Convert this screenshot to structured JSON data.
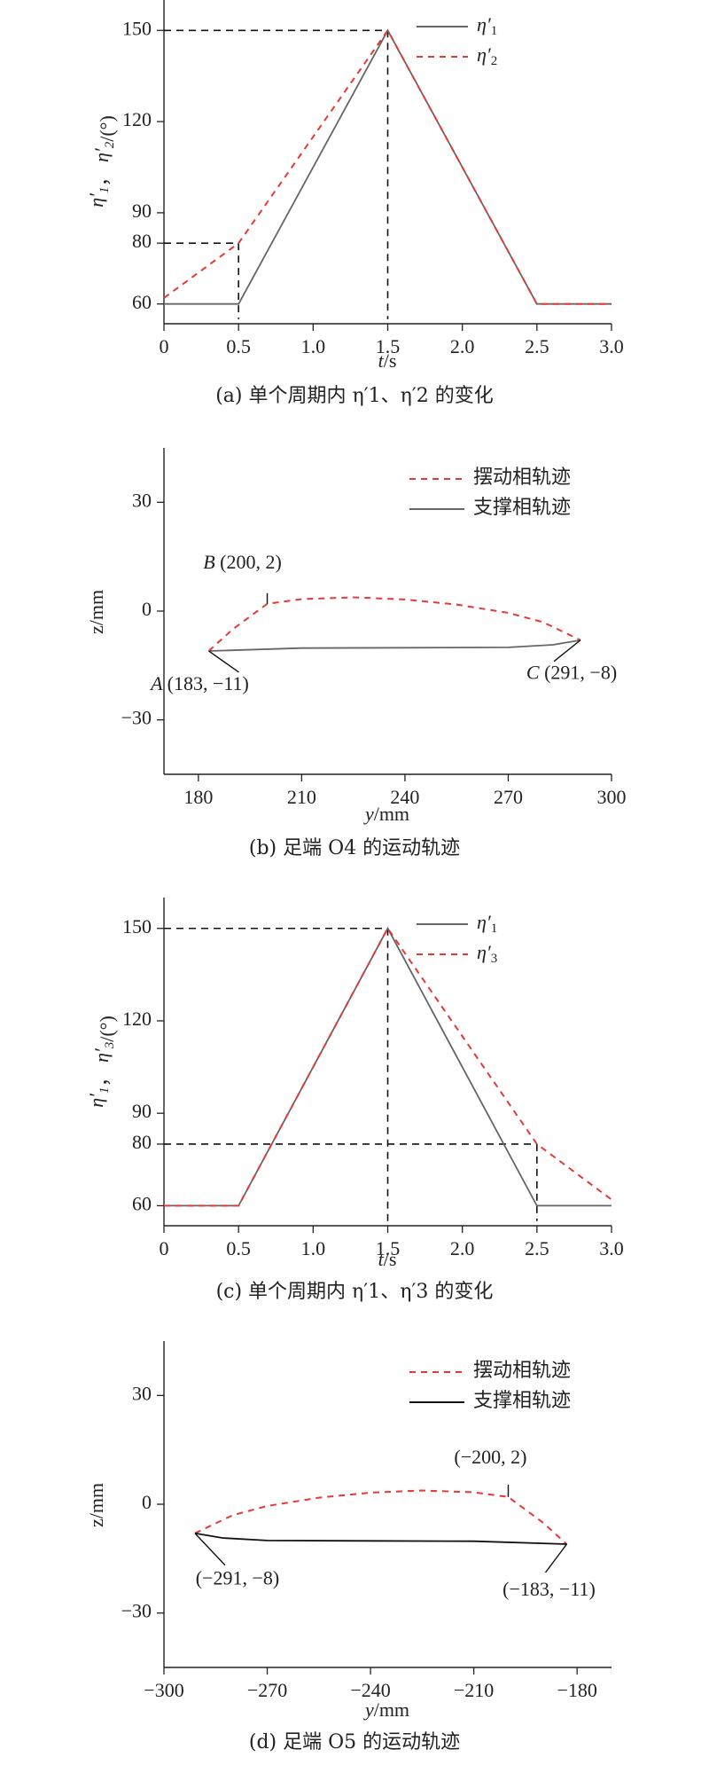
{
  "chart_data": [
    {
      "type": "line",
      "panel": "a",
      "caption": "(a) 单个周期内 η′1、η′2 的变化",
      "xlabel": "t/s",
      "ylabel": "η′1， η′2/(°)",
      "xlim": [
        0,
        3.0
      ],
      "ylim": [
        55,
        160
      ],
      "x_ticks": [
        "0",
        "0.5",
        "1.0",
        "1.5",
        "2.0",
        "2.5",
        "3.0"
      ],
      "y_ticks": [
        "60",
        "80",
        "90",
        "120",
        "150"
      ],
      "legend_position": "top-right",
      "series": [
        {
          "name": "η′1",
          "style": "solid",
          "color": "#666666",
          "points": [
            [
              0,
              60
            ],
            [
              0.5,
              60
            ],
            [
              1.5,
              150
            ],
            [
              2.5,
              60
            ],
            [
              3.0,
              60
            ]
          ]
        },
        {
          "name": "η′2",
          "style": "dashed",
          "color": "#e53935",
          "points": [
            [
              0,
              62
            ],
            [
              0.5,
              80
            ],
            [
              1.5,
              150
            ],
            [
              2.5,
              60
            ],
            [
              3.0,
              60
            ]
          ]
        }
      ],
      "ref_lines": [
        {
          "points": [
            [
              0,
              150
            ],
            [
              1.5,
              150
            ]
          ]
        },
        {
          "points": [
            [
              1.5,
              150
            ],
            [
              1.5,
              55
            ]
          ]
        },
        {
          "points": [
            [
              0,
              80
            ],
            [
              0.5,
              80
            ]
          ]
        },
        {
          "points": [
            [
              0.5,
              80
            ],
            [
              0.5,
              55
            ]
          ]
        }
      ]
    },
    {
      "type": "line",
      "panel": "b",
      "caption": "(b) 足端 O4 的运动轨迹",
      "xlabel": "y/mm",
      "ylabel": "z/mm",
      "xlim": [
        170,
        300
      ],
      "ylim": [
        -45,
        45
      ],
      "x_ticks": [
        "180",
        "210",
        "240",
        "270",
        "300"
      ],
      "y_ticks": [
        "30",
        "0",
        "−30"
      ],
      "legend_position": "top-right",
      "series": [
        {
          "name": "摆动相轨迹",
          "style": "dashed",
          "color": "#e53935",
          "points": [
            [
              183,
              -11
            ],
            [
              190,
              -5
            ],
            [
              200,
              2
            ],
            [
              210,
              3.3
            ],
            [
              225,
              3.8
            ],
            [
              240,
              3.2
            ],
            [
              255,
              1.8
            ],
            [
              270,
              -0.5
            ],
            [
              280,
              -3
            ],
            [
              291,
              -8
            ]
          ]
        },
        {
          "name": "支撑相轨迹",
          "style": "solid",
          "color": "#666666",
          "points": [
            [
              183,
              -11
            ],
            [
              210,
              -10.2
            ],
            [
              240,
              -10.1
            ],
            [
              270,
              -10.0
            ],
            [
              283,
              -9.3
            ],
            [
              291,
              -8
            ]
          ]
        }
      ],
      "annotations": [
        {
          "label": "B (200, 2)",
          "x": 200,
          "y": 2
        },
        {
          "label": "A (183, −11)",
          "x": 183,
          "y": -11
        },
        {
          "label": "C (291, −8)",
          "x": 291,
          "y": -8
        }
      ]
    },
    {
      "type": "line",
      "panel": "c",
      "caption": "(c) 单个周期内 η′1、η′3 的变化",
      "xlabel": "t/s",
      "ylabel": "η′1， η′3/(°)",
      "xlim": [
        0,
        3.0
      ],
      "ylim": [
        55,
        160
      ],
      "x_ticks": [
        "0",
        "0.5",
        "1.0",
        "1.5",
        "2.0",
        "2.5",
        "3.0"
      ],
      "y_ticks": [
        "60",
        "80",
        "90",
        "120",
        "150"
      ],
      "legend_position": "top-right",
      "series": [
        {
          "name": "η′1",
          "style": "solid",
          "color": "#666666",
          "points": [
            [
              0,
              60
            ],
            [
              0.5,
              60
            ],
            [
              1.5,
              150
            ],
            [
              2.5,
              60
            ],
            [
              3.0,
              60
            ]
          ]
        },
        {
          "name": "η′3",
          "style": "dashed",
          "color": "#e53935",
          "points": [
            [
              0,
              60
            ],
            [
              0.5,
              60
            ],
            [
              1.5,
              150
            ],
            [
              2.5,
              80
            ],
            [
              3.0,
              62
            ]
          ]
        }
      ],
      "ref_lines": [
        {
          "points": [
            [
              0,
              150
            ],
            [
              1.5,
              150
            ]
          ]
        },
        {
          "points": [
            [
              1.5,
              150
            ],
            [
              1.5,
              55
            ]
          ]
        },
        {
          "points": [
            [
              0,
              80
            ],
            [
              2.5,
              80
            ]
          ]
        },
        {
          "points": [
            [
              2.5,
              80
            ],
            [
              2.5,
              55
            ]
          ]
        }
      ]
    },
    {
      "type": "line",
      "panel": "d",
      "caption": "(d) 足端 O5 的运动轨迹",
      "xlabel": "y/mm",
      "ylabel": "z/mm",
      "xlim": [
        -300,
        -170
      ],
      "ylim": [
        -45,
        45
      ],
      "x_ticks": [
        "−300",
        "−270",
        "−240",
        "−210",
        "−180"
      ],
      "y_ticks": [
        "30",
        "0",
        "−30"
      ],
      "legend_position": "top-right",
      "series": [
        {
          "name": "摆动相轨迹",
          "style": "dashed",
          "color": "#e53935",
          "points": [
            [
              -291,
              -8
            ],
            [
              -280,
              -3
            ],
            [
              -270,
              -0.5
            ],
            [
              -255,
              1.8
            ],
            [
              -240,
              3.2
            ],
            [
              -225,
              3.8
            ],
            [
              -210,
              3.3
            ],
            [
              -200,
              2
            ],
            [
              -190,
              -5
            ],
            [
              -183,
              -11
            ]
          ]
        },
        {
          "name": "支撑相轨迹",
          "style": "solid",
          "color": "#111111",
          "points": [
            [
              -291,
              -8
            ],
            [
              -283,
              -9.3
            ],
            [
              -270,
              -10.0
            ],
            [
              -240,
              -10.1
            ],
            [
              -210,
              -10.2
            ],
            [
              -183,
              -11
            ]
          ]
        }
      ],
      "annotations": [
        {
          "label": "(−200, 2)",
          "x": -200,
          "y": 2
        },
        {
          "label": "(−291, −8)",
          "x": -291,
          "y": -8
        },
        {
          "label": "(−183, −11)",
          "x": -183,
          "y": -11
        }
      ]
    }
  ]
}
